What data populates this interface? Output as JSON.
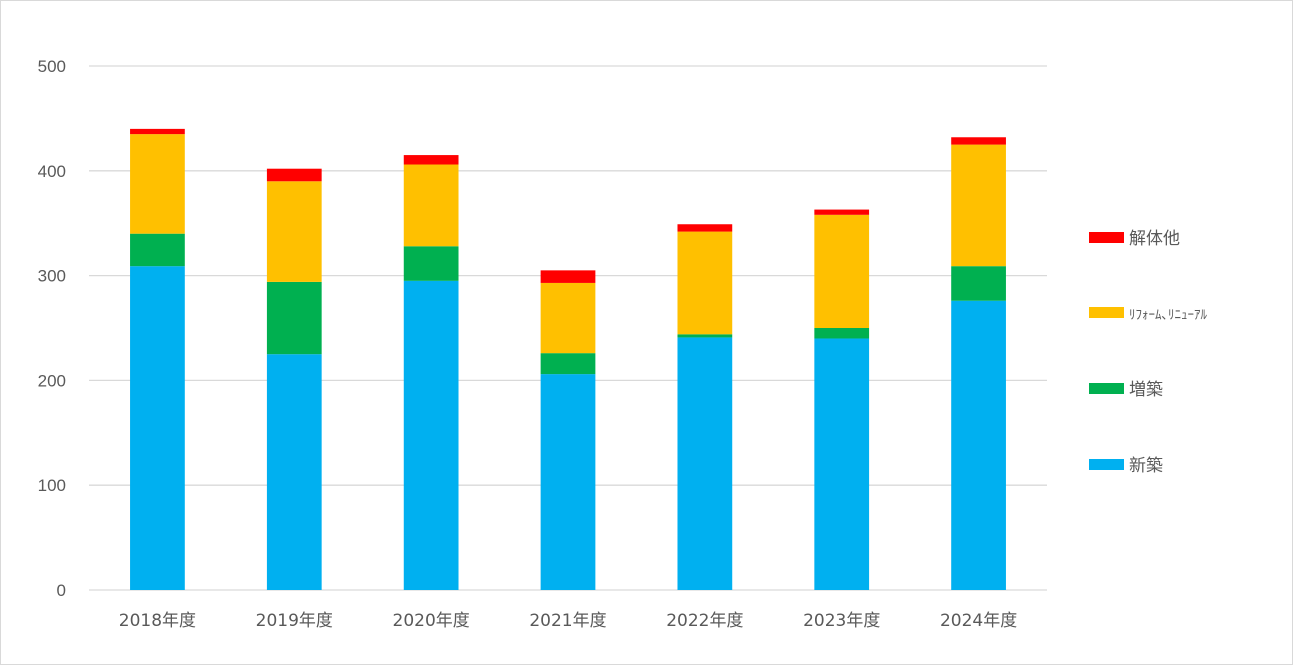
{
  "chart_data": {
    "type": "bar",
    "stacked": true,
    "title": "",
    "xlabel": "",
    "ylabel": "",
    "ylim": [
      0,
      500
    ],
    "yticks": [
      0,
      100,
      200,
      300,
      400,
      500
    ],
    "grid": true,
    "legend_position": "right",
    "categories": [
      "2018年度",
      "2019年度",
      "2020年度",
      "2021年度",
      "2022年度",
      "2023年度",
      "2024年度"
    ],
    "series": [
      {
        "name": "新築",
        "color": "#00b0f0",
        "values": [
          309,
          225,
          295,
          206,
          241,
          240,
          276
        ]
      },
      {
        "name": "増築",
        "color": "#00b050",
        "values": [
          31,
          69,
          33,
          20,
          3,
          10,
          33
        ]
      },
      {
        "name": "ﾘﾌｫｰﾑ､ﾘﾆｭｰｱﾙ",
        "color": "#ffc000",
        "values": [
          95,
          96,
          78,
          67,
          98,
          108,
          116
        ]
      },
      {
        "name": "解体他",
        "color": "#ff0000",
        "values": [
          5,
          12,
          9,
          12,
          7,
          5,
          7
        ]
      }
    ]
  }
}
